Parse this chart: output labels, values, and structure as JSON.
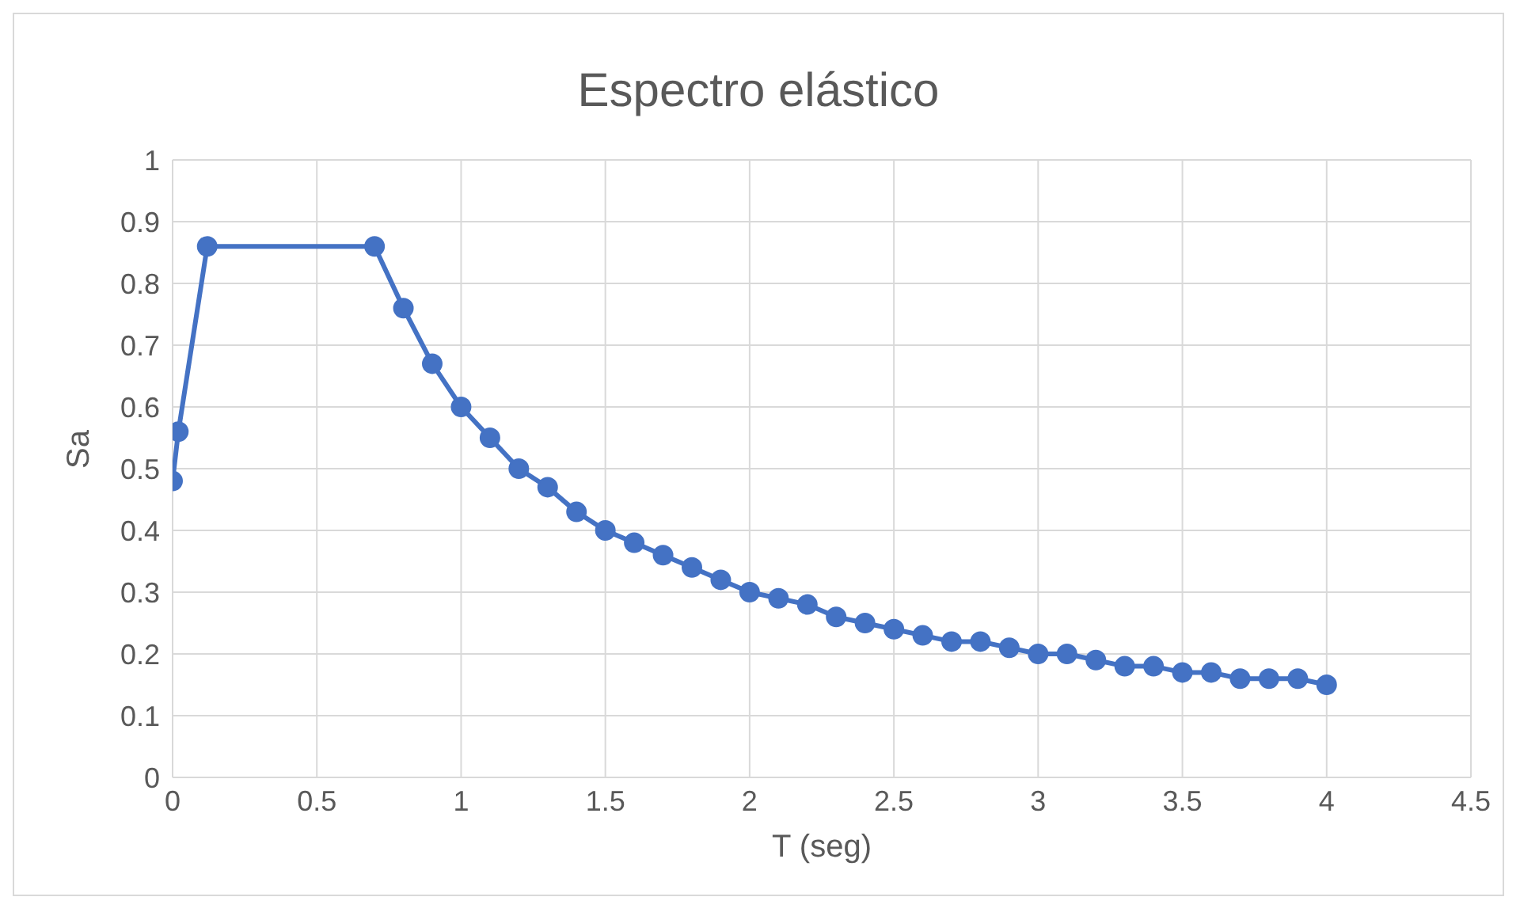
{
  "chart_data": {
    "type": "line",
    "title": "Espectro elástico",
    "xlabel": "T (seg)",
    "ylabel": "Sa",
    "x": [
      0,
      0.02,
      0.12,
      0.7,
      0.8,
      0.9,
      1.0,
      1.1,
      1.2,
      1.3,
      1.4,
      1.5,
      1.6,
      1.7,
      1.8,
      1.9,
      2.0,
      2.1,
      2.2,
      2.3,
      2.4,
      2.5,
      2.6,
      2.7,
      2.8,
      2.9,
      3.0,
      3.1,
      3.2,
      3.3,
      3.4,
      3.5,
      3.6,
      3.7,
      3.8,
      3.9,
      4.0
    ],
    "series": [
      {
        "color": "#4472c4",
        "values": [
          0.48,
          0.56,
          0.86,
          0.86,
          0.76,
          0.67,
          0.6,
          0.55,
          0.5,
          0.47,
          0.43,
          0.4,
          0.38,
          0.36,
          0.34,
          0.32,
          0.3,
          0.29,
          0.28,
          0.26,
          0.25,
          0.24,
          0.23,
          0.22,
          0.22,
          0.21,
          0.2,
          0.2,
          0.19,
          0.18,
          0.18,
          0.17,
          0.17,
          0.16,
          0.16,
          0.16,
          0.15
        ]
      }
    ],
    "xlim": [
      0,
      4.5
    ],
    "xticks": [
      0,
      0.5,
      1,
      1.5,
      2,
      2.5,
      3,
      3.5,
      4,
      4.5
    ],
    "ylim": [
      0,
      1
    ],
    "yticks": [
      0,
      0.1,
      0.2,
      0.3,
      0.4,
      0.5,
      0.6,
      0.7,
      0.8,
      0.9,
      1
    ],
    "grid": true,
    "marker": "circle",
    "line_style": "solid"
  }
}
